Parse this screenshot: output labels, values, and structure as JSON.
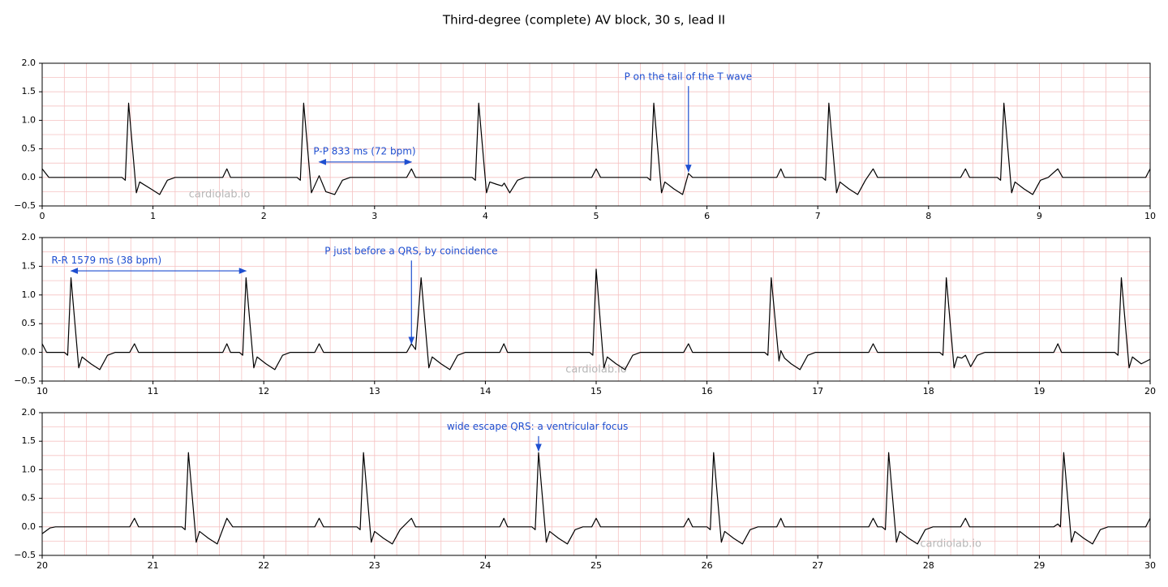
{
  "title": "Third-degree (complete) AV block, 30 s, lead II",
  "chart_data": [
    {
      "type": "line",
      "color": "#000000",
      "watermark": "cardiolab.io",
      "xlim": [
        0,
        10
      ],
      "ylim": [
        -0.5,
        2
      ],
      "xticks": [
        0,
        1,
        2,
        3,
        4,
        5,
        6,
        7,
        8,
        9,
        10
      ],
      "yticks": [
        {
          "value": -0.5,
          "label": "−0.5"
        },
        {
          "value": 0,
          "label": "0.0"
        },
        {
          "value": 0.5,
          "label": "0.5"
        },
        {
          "value": 1,
          "label": "1.0"
        },
        {
          "value": 1.5,
          "label": "1.5"
        },
        {
          "value": 2,
          "label": "2.0"
        }
      ],
      "grid": {
        "x_step": 0.2,
        "y_step": 0.25,
        "color": "#f5c2c2"
      },
      "x": [
        0,
        0.06,
        0.72,
        0.75,
        0.78,
        0.85,
        0.88,
        0.98,
        1.06,
        1.13,
        1.2,
        1.63,
        1.667,
        1.7,
        2.3,
        2.33,
        2.36,
        2.43,
        2.5,
        2.56,
        2.64,
        2.71,
        2.78,
        3.29,
        3.333,
        3.37,
        3.88,
        3.91,
        3.94,
        4.01,
        4.04,
        4.1,
        4.15,
        4.17,
        4.22,
        4.29,
        4.36,
        4.96,
        5,
        5.04,
        5.46,
        5.49,
        5.52,
        5.59,
        5.62,
        5.7,
        5.78,
        5.833,
        5.87,
        6.63,
        6.667,
        6.7,
        7.04,
        7.07,
        7.1,
        7.17,
        7.2,
        7.28,
        7.36,
        7.43,
        7.5,
        7.54,
        8.29,
        8.333,
        8.37,
        8.62,
        8.65,
        8.68,
        8.75,
        8.78,
        8.86,
        8.94,
        9.01,
        9.08,
        9.167,
        9.21,
        9.96,
        10
      ],
      "values": [
        0.15,
        0,
        0,
        -0.05,
        1.3,
        -0.27,
        -0.08,
        -0.2,
        -0.3,
        -0.05,
        0,
        0,
        0.15,
        0,
        0,
        -0.05,
        1.3,
        -0.27,
        0.03,
        -0.25,
        -0.3,
        -0.05,
        0,
        0,
        0.15,
        0,
        0,
        -0.05,
        1.3,
        -0.27,
        -0.08,
        -0.12,
        -0.15,
        -0.1,
        -0.27,
        -0.05,
        0,
        0,
        0.15,
        0,
        0,
        -0.05,
        1.3,
        -0.27,
        -0.08,
        -0.2,
        -0.3,
        0.07,
        0,
        0,
        0.15,
        0,
        0,
        -0.05,
        1.3,
        -0.27,
        -0.08,
        -0.2,
        -0.3,
        -0.05,
        0.15,
        0,
        0,
        0.15,
        0,
        0,
        -0.05,
        1.3,
        -0.27,
        -0.08,
        -0.2,
        -0.3,
        -0.05,
        0,
        0.15,
        0,
        0,
        0.15
      ],
      "annotations": [
        {
          "text": "P-P 833 ms (72 bpm)",
          "color": "#1f4fd0",
          "text_at": [
            2.91,
            0.45
          ],
          "arrow_from": [
            2.5,
            0.27
          ],
          "arrow_to": [
            3.333,
            0.27
          ],
          "arrow_style": "<->"
        },
        {
          "text": "P on the tail of the T wave",
          "color": "#1f4fd0",
          "text_at": [
            5.83,
            1.76
          ],
          "arrow_from": [
            5.833,
            1.6
          ],
          "arrow_to": [
            5.833,
            0.1
          ],
          "arrow_style": "->"
        }
      ]
    },
    {
      "type": "line",
      "color": "#000000",
      "watermark": "cardiolab.io",
      "xlim": [
        10,
        20
      ],
      "ylim": [
        -0.5,
        2
      ],
      "xticks": [
        10,
        11,
        12,
        13,
        14,
        15,
        16,
        17,
        18,
        19,
        20
      ],
      "yticks": [
        {
          "value": -0.5,
          "label": "−0.5"
        },
        {
          "value": 0,
          "label": "0.0"
        },
        {
          "value": 0.5,
          "label": "0.5"
        },
        {
          "value": 1,
          "label": "1.0"
        },
        {
          "value": 1.5,
          "label": "1.5"
        },
        {
          "value": 2,
          "label": "2.0"
        }
      ],
      "grid": {
        "x_step": 0.2,
        "y_step": 0.25,
        "color": "#f5c2c2"
      },
      "x": [
        10,
        10.04,
        10.2,
        10.23,
        10.26,
        10.33,
        10.36,
        10.44,
        10.52,
        10.59,
        10.66,
        10.79,
        10.833,
        10.87,
        11.63,
        11.667,
        11.7,
        11.78,
        11.81,
        11.84,
        11.91,
        11.94,
        12.02,
        12.1,
        12.17,
        12.24,
        12.46,
        12.5,
        12.54,
        13.29,
        13.333,
        13.37,
        13.42,
        13.49,
        13.52,
        13.6,
        13.68,
        13.75,
        13.82,
        14.13,
        14.167,
        14.2,
        14.94,
        14.97,
        15,
        15.07,
        15.1,
        15.18,
        15.26,
        15.33,
        15.4,
        15.79,
        15.833,
        15.87,
        16.52,
        16.55,
        16.58,
        16.65,
        16.667,
        16.7,
        16.76,
        16.84,
        16.91,
        16.98,
        17.46,
        17.5,
        17.54,
        18.1,
        18.13,
        18.16,
        18.23,
        18.26,
        18.3,
        18.333,
        18.38,
        18.44,
        18.51,
        19.13,
        19.167,
        19.2,
        19.68,
        19.71,
        19.74,
        19.81,
        19.84,
        19.92,
        20
      ],
      "values": [
        0.15,
        0,
        0,
        -0.05,
        1.3,
        -0.27,
        -0.08,
        -0.2,
        -0.3,
        -0.05,
        0,
        0,
        0.15,
        0,
        0,
        0.15,
        0,
        0,
        -0.05,
        1.3,
        -0.27,
        -0.08,
        -0.2,
        -0.3,
        -0.05,
        0,
        0,
        0.15,
        0,
        0,
        0.15,
        0.05,
        1.3,
        -0.27,
        -0.08,
        -0.2,
        -0.3,
        -0.05,
        0,
        0,
        0.15,
        0,
        0,
        -0.05,
        1.45,
        -0.27,
        -0.08,
        -0.2,
        -0.3,
        -0.05,
        0,
        0,
        0.15,
        0,
        0,
        -0.05,
        1.3,
        -0.15,
        0.03,
        -0.1,
        -0.2,
        -0.3,
        -0.05,
        0,
        0,
        0.15,
        0,
        0,
        -0.05,
        1.3,
        -0.27,
        -0.08,
        -0.1,
        -0.05,
        -0.25,
        -0.05,
        0,
        0,
        0.15,
        0,
        0,
        -0.05,
        1.3,
        -0.27,
        -0.08,
        -0.2,
        -0.12
      ],
      "annotations": [
        {
          "text": "R-R 1579 ms (38 bpm)",
          "color": "#1f4fd0",
          "text_at": [
            10.58,
            1.6
          ],
          "arrow_from": [
            10.26,
            1.42
          ],
          "arrow_to": [
            11.84,
            1.42
          ],
          "arrow_style": "<->"
        },
        {
          "text": "P just before a QRS, by coincidence",
          "color": "#1f4fd0",
          "text_at": [
            13.33,
            1.76
          ],
          "arrow_from": [
            13.333,
            1.6
          ],
          "arrow_to": [
            13.333,
            0.15
          ],
          "arrow_style": "->"
        }
      ]
    },
    {
      "type": "line",
      "color": "#000000",
      "watermark": "cardiolab.io",
      "xlim": [
        20,
        30
      ],
      "ylim": [
        -0.5,
        2
      ],
      "xticks": [
        20,
        21,
        22,
        23,
        24,
        25,
        26,
        27,
        28,
        29,
        30
      ],
      "yticks": [
        {
          "value": -0.5,
          "label": "−0.5"
        },
        {
          "value": 0,
          "label": "0.0"
        },
        {
          "value": 0.5,
          "label": "0.5"
        },
        {
          "value": 1,
          "label": "1.0"
        },
        {
          "value": 1.5,
          "label": "1.5"
        },
        {
          "value": 2,
          "label": "2.0"
        }
      ],
      "grid": {
        "x_step": 0.2,
        "y_step": 0.25,
        "color": "#f5c2c2"
      },
      "x": [
        20,
        20.07,
        20.12,
        20.79,
        20.833,
        20.87,
        21.26,
        21.29,
        21.32,
        21.39,
        21.42,
        21.5,
        21.58,
        21.667,
        21.72,
        22.46,
        22.5,
        22.54,
        22.84,
        22.87,
        22.9,
        22.97,
        23,
        23.08,
        23.16,
        23.23,
        23.333,
        23.37,
        24.13,
        24.167,
        24.2,
        24.42,
        24.45,
        24.48,
        24.55,
        24.58,
        24.66,
        24.74,
        24.81,
        24.88,
        24.96,
        25,
        25.04,
        25.79,
        25.833,
        25.87,
        26,
        26.03,
        26.06,
        26.13,
        26.16,
        26.24,
        26.32,
        26.39,
        26.46,
        26.63,
        26.667,
        26.7,
        27.46,
        27.5,
        27.54,
        27.58,
        27.61,
        27.64,
        27.71,
        27.74,
        27.82,
        27.9,
        27.97,
        28.04,
        28.29,
        28.333,
        28.37,
        29.13,
        29.167,
        29.19,
        29.22,
        29.29,
        29.32,
        29.4,
        29.48,
        29.55,
        29.62,
        29.96,
        30
      ],
      "values": [
        -0.12,
        -0.02,
        0,
        0,
        0.15,
        0,
        0,
        -0.05,
        1.3,
        -0.27,
        -0.08,
        -0.2,
        -0.3,
        0.15,
        0,
        0,
        0.15,
        0,
        0,
        -0.05,
        1.3,
        -0.27,
        -0.08,
        -0.2,
        -0.3,
        -0.05,
        0.15,
        0,
        0,
        0.15,
        0,
        0,
        -0.05,
        1.3,
        -0.27,
        -0.08,
        -0.2,
        -0.3,
        -0.05,
        0,
        0,
        0.15,
        0,
        0,
        0.15,
        0,
        0,
        -0.05,
        1.3,
        -0.27,
        -0.08,
        -0.2,
        -0.3,
        -0.05,
        0,
        0,
        0.15,
        0,
        0,
        0.15,
        0,
        0,
        -0.05,
        1.3,
        -0.27,
        -0.08,
        -0.2,
        -0.3,
        -0.05,
        0,
        0,
        0.15,
        0,
        0,
        0.05,
        0,
        1.3,
        -0.27,
        -0.08,
        -0.2,
        -0.3,
        -0.05,
        0,
        0,
        0.15
      ],
      "annotations": [
        {
          "text": "wide escape QRS: a ventricular focus",
          "color": "#1f4fd0",
          "text_at": [
            24.47,
            1.75
          ],
          "arrow_from": [
            24.48,
            1.59
          ],
          "arrow_to": [
            24.48,
            1.33
          ],
          "arrow_style": "->"
        }
      ]
    }
  ]
}
